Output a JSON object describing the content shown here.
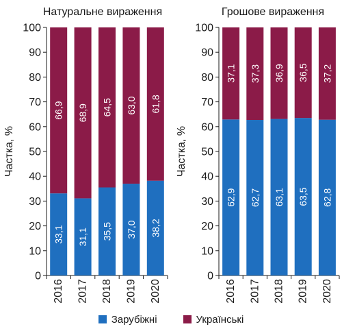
{
  "colors": {
    "foreign": "#1f6fbf",
    "ukrainian": "#8b1b48",
    "axis": "#1a1a1a",
    "label_on_bar": "#ffffff"
  },
  "legend": {
    "foreign": "Зарубіжні",
    "ukrainian": "Українські"
  },
  "chart_data": [
    {
      "type": "bar",
      "stacked": true,
      "title": "Натуральне вираження",
      "ylabel": "Частка, %",
      "ylim": [
        0,
        100
      ],
      "yticks": [
        "0",
        "10",
        "20",
        "30",
        "40",
        "50",
        "60",
        "70",
        "80",
        "90",
        "100"
      ],
      "categories": [
        "2016",
        "2017",
        "2018",
        "2019",
        "2020"
      ],
      "series": [
        {
          "name": "Зарубіжні",
          "key": "foreign",
          "values": [
            33.1,
            31.1,
            35.5,
            37.0,
            38.2
          ],
          "labels": [
            "33,1",
            "31,1",
            "35,5",
            "37,0",
            "38,2"
          ]
        },
        {
          "name": "Українські",
          "key": "ukrainian",
          "values": [
            66.9,
            68.9,
            64.5,
            63.0,
            61.8
          ],
          "labels": [
            "66,9",
            "68,9",
            "64,5",
            "63,0",
            "61,8"
          ]
        }
      ]
    },
    {
      "type": "bar",
      "stacked": true,
      "title": "Грошове вираження",
      "ylabel": "Частка, %",
      "ylim": [
        0,
        100
      ],
      "yticks": [
        "0",
        "10",
        "20",
        "30",
        "40",
        "50",
        "60",
        "70",
        "80",
        "90",
        "100"
      ],
      "categories": [
        "2016",
        "2017",
        "2018",
        "2019",
        "2020"
      ],
      "series": [
        {
          "name": "Зарубіжні",
          "key": "foreign",
          "values": [
            62.9,
            62.7,
            63.1,
            63.5,
            62.8
          ],
          "labels": [
            "62,9",
            "62,7",
            "63,1",
            "63,5",
            "62,8"
          ]
        },
        {
          "name": "Українські",
          "key": "ukrainian",
          "values": [
            37.1,
            37.3,
            36.9,
            36.5,
            37.2
          ],
          "labels": [
            "37,1",
            "37,3",
            "36,9",
            "36,5",
            "37,2"
          ]
        }
      ]
    }
  ]
}
